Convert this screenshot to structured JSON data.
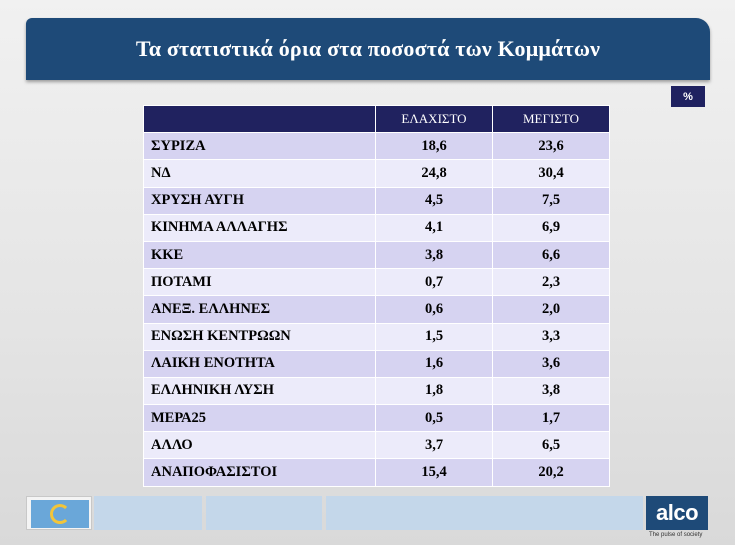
{
  "title": "Τα στατιστικά όρια στα ποσοστά των Κομμάτων",
  "unit": "%",
  "table": {
    "headers": [
      "",
      "ΕΛΑΧΙΣΤΟ",
      "ΜΕΓΙΣΤΟ"
    ],
    "rows": [
      {
        "party": "ΣΥΡΙΖΑ",
        "min": "18,6",
        "max": "23,6"
      },
      {
        "party": "ΝΔ",
        "min": "24,8",
        "max": "30,4"
      },
      {
        "party": "ΧΡΥΣΗ ΑΥΓΗ",
        "min": "4,5",
        "max": "7,5"
      },
      {
        "party": "ΚΙΝΗΜΑ ΑΛΛΑΓΗΣ",
        "min": "4,1",
        "max": "6,9"
      },
      {
        "party": "ΚΚΕ",
        "min": "3,8",
        "max": "6,6"
      },
      {
        "party": "ΠΟΤΑΜΙ",
        "min": "0,7",
        "max": "2,3"
      },
      {
        "party": "ΑΝΕΞ. ΕΛΛΗΝΕΣ",
        "min": "0,6",
        "max": "2,0"
      },
      {
        "party": "ΕΝΩΣΗ ΚΕΝΤΡΩΩΝ",
        "min": "1,5",
        "max": "3,3"
      },
      {
        "party": "ΛΑΙΚΗ ΕΝΟΤΗΤΑ",
        "min": "1,6",
        "max": "3,6"
      },
      {
        "party": "ΕΛΛΗΝΙΚΗ ΛΥΣΗ",
        "min": "1,8",
        "max": "3,8"
      },
      {
        "party": "ΜΕΡΑ25",
        "min": "0,5",
        "max": "1,7"
      },
      {
        "party": "ΑΛΛΟ",
        "min": "3,7",
        "max": "6,5"
      },
      {
        "party": "ΑΝΑΠΟΦΑΣΙΣΤΟΙ",
        "min": "15,4",
        "max": "20,2"
      }
    ]
  },
  "brand": {
    "name": "alco",
    "tagline": "The pulse of society"
  },
  "colors": {
    "title_bar": "#1e4a78",
    "header": "#20225f",
    "row_odd": "#d6d3f1",
    "row_even": "#ecebfa"
  }
}
